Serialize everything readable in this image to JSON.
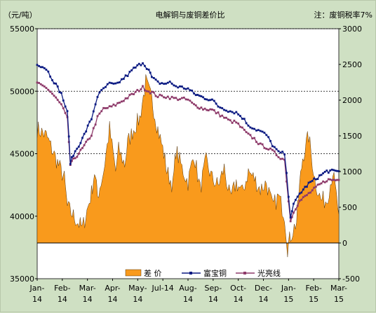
{
  "chart_data": {
    "type": "line",
    "title": "电解铜与废铜差价比",
    "note": "注：废铜税率7%",
    "y_left_unit": "（元/吨）",
    "y_left": {
      "min": 35000,
      "max": 55000,
      "ticks": [
        35000,
        40000,
        45000,
        50000,
        55000
      ]
    },
    "y_right": {
      "min": -500,
      "max": 3000,
      "ticks": [
        -500,
        0,
        500,
        1000,
        1500,
        2000,
        2500,
        3000
      ]
    },
    "x_tick_labels": [
      [
        "Jan-",
        "14"
      ],
      [
        "Feb-",
        "14"
      ],
      [
        "Mar-",
        "14"
      ],
      [
        "Apr-",
        "14"
      ],
      [
        "May-",
        "14"
      ],
      [
        "Jul-14",
        ""
      ],
      [
        "Aug-",
        "14"
      ],
      [
        "Sep-",
        "14"
      ],
      [
        "Oct-",
        "14"
      ],
      [
        "Dec-",
        "14"
      ],
      [
        "Jan-",
        "15"
      ],
      [
        "Feb-",
        "15"
      ],
      [
        "Mar-",
        "15"
      ]
    ],
    "dashed_gridlines_left": [
      45000,
      50000,
      55000
    ],
    "colors": {
      "spread": "#f99a1c",
      "fubao": "#0b1a82",
      "guangliang": "#8e3a6a",
      "plot_bg": "#ffffff"
    },
    "series": [
      {
        "name": "差  价",
        "axis": "right",
        "style": "area",
        "x": [
          0,
          0.03,
          0.06,
          0.09,
          0.1,
          0.12,
          0.15,
          0.18,
          0.19,
          0.2,
          0.22,
          0.24,
          0.26,
          0.27,
          0.29,
          0.3,
          0.32,
          0.34,
          0.36,
          0.38,
          0.39,
          0.4,
          0.42,
          0.43,
          0.45,
          0.46,
          0.48,
          0.5,
          0.52,
          0.54,
          0.56,
          0.58,
          0.6,
          0.62,
          0.64,
          0.66,
          0.68,
          0.7,
          0.72,
          0.74,
          0.76,
          0.78,
          0.8,
          0.82,
          0.83,
          0.84,
          0.86,
          0.87,
          0.88,
          0.9,
          0.92,
          0.94,
          0.96,
          0.98,
          1.0
        ],
        "values": [
          1600,
          1500,
          1200,
          900,
          500,
          380,
          200,
          700,
          1000,
          650,
          1000,
          1600,
          1000,
          1300,
          1100,
          1400,
          1600,
          1750,
          2250,
          2000,
          1800,
          1600,
          1250,
          1000,
          800,
          1300,
          1050,
          850,
          1250,
          750,
          1150,
          900,
          800,
          1050,
          600,
          850,
          700,
          1000,
          900,
          750,
          850,
          500,
          650,
          400,
          -70,
          100,
          300,
          800,
          1200,
          1500,
          900,
          600,
          600,
          1000,
          400
        ]
      },
      {
        "name": "富宝铜",
        "axis": "left",
        "style": "line-markers",
        "x": [
          0,
          0.03,
          0.05,
          0.08,
          0.1,
          0.11,
          0.12,
          0.15,
          0.18,
          0.2,
          0.22,
          0.24,
          0.26,
          0.28,
          0.3,
          0.32,
          0.35,
          0.37,
          0.38,
          0.4,
          0.42,
          0.44,
          0.46,
          0.48,
          0.5,
          0.52,
          0.55,
          0.58,
          0.6,
          0.62,
          0.64,
          0.66,
          0.68,
          0.7,
          0.72,
          0.74,
          0.76,
          0.78,
          0.8,
          0.82,
          0.84,
          0.85,
          0.87,
          0.9,
          0.93,
          0.96,
          1.0
        ],
        "values": [
          52200,
          51800,
          51000,
          49800,
          48300,
          44300,
          44900,
          46200,
          47800,
          49600,
          50200,
          50600,
          50500,
          50900,
          51300,
          51800,
          52300,
          51700,
          51100,
          50700,
          50600,
          50700,
          50400,
          50300,
          50200,
          49800,
          49500,
          49300,
          48800,
          48600,
          48400,
          48300,
          47900,
          47300,
          47000,
          46800,
          46500,
          45700,
          45100,
          45000,
          40000,
          40900,
          41800,
          42600,
          43100,
          43600,
          43600
        ]
      },
      {
        "name": "光亮线",
        "axis": "left",
        "style": "line-markers",
        "x": [
          0,
          0.03,
          0.05,
          0.08,
          0.1,
          0.11,
          0.12,
          0.15,
          0.18,
          0.2,
          0.22,
          0.24,
          0.26,
          0.28,
          0.3,
          0.32,
          0.35,
          0.37,
          0.38,
          0.4,
          0.42,
          0.44,
          0.46,
          0.48,
          0.5,
          0.52,
          0.55,
          0.58,
          0.6,
          0.62,
          0.64,
          0.66,
          0.68,
          0.7,
          0.72,
          0.74,
          0.76,
          0.78,
          0.8,
          0.82,
          0.84,
          0.85,
          0.87,
          0.9,
          0.93,
          0.96,
          1.0
        ],
        "values": [
          50600,
          50300,
          49800,
          48900,
          47800,
          44100,
          44500,
          45400,
          46500,
          47900,
          48600,
          48700,
          48900,
          49200,
          49500,
          49800,
          50300,
          50000,
          49900,
          49600,
          49600,
          49500,
          49400,
          49400,
          49300,
          48900,
          48600,
          48500,
          48200,
          47900,
          47600,
          47500,
          47000,
          46500,
          46200,
          45700,
          45500,
          45200,
          44800,
          44500,
          39600,
          40400,
          41200,
          41800,
          42400,
          42900,
          42900
        ]
      }
    ]
  }
}
